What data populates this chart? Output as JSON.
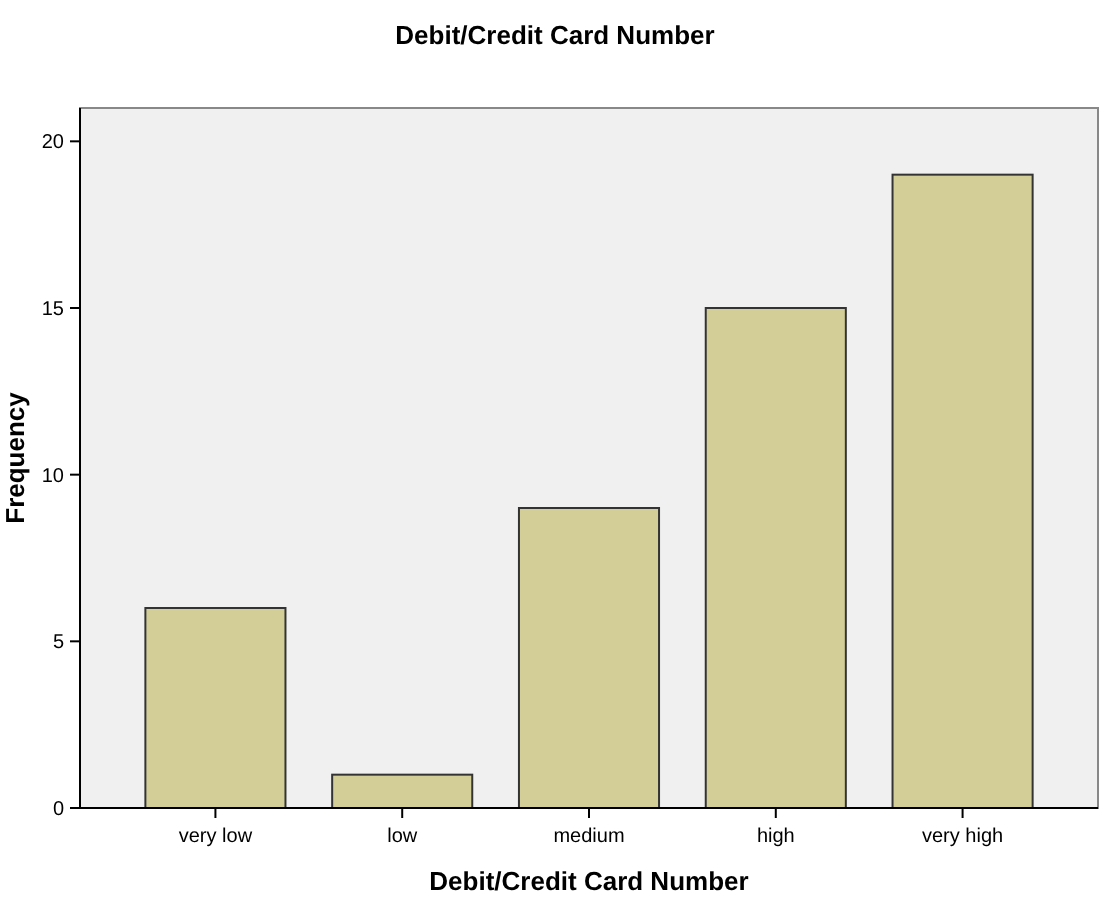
{
  "chart_data": {
    "type": "bar",
    "title": "Debit/Credit Card Number",
    "xlabel": "Debit/Credit Card Number",
    "ylabel": "Frequency",
    "categories": [
      "very low",
      "low",
      "medium",
      "high",
      "very high"
    ],
    "values": [
      6,
      1,
      9,
      15,
      19
    ],
    "color": "#d3ce97",
    "ylim": [
      0,
      21
    ],
    "yticks": [
      0,
      5,
      10,
      15,
      20
    ],
    "grid": false
  }
}
